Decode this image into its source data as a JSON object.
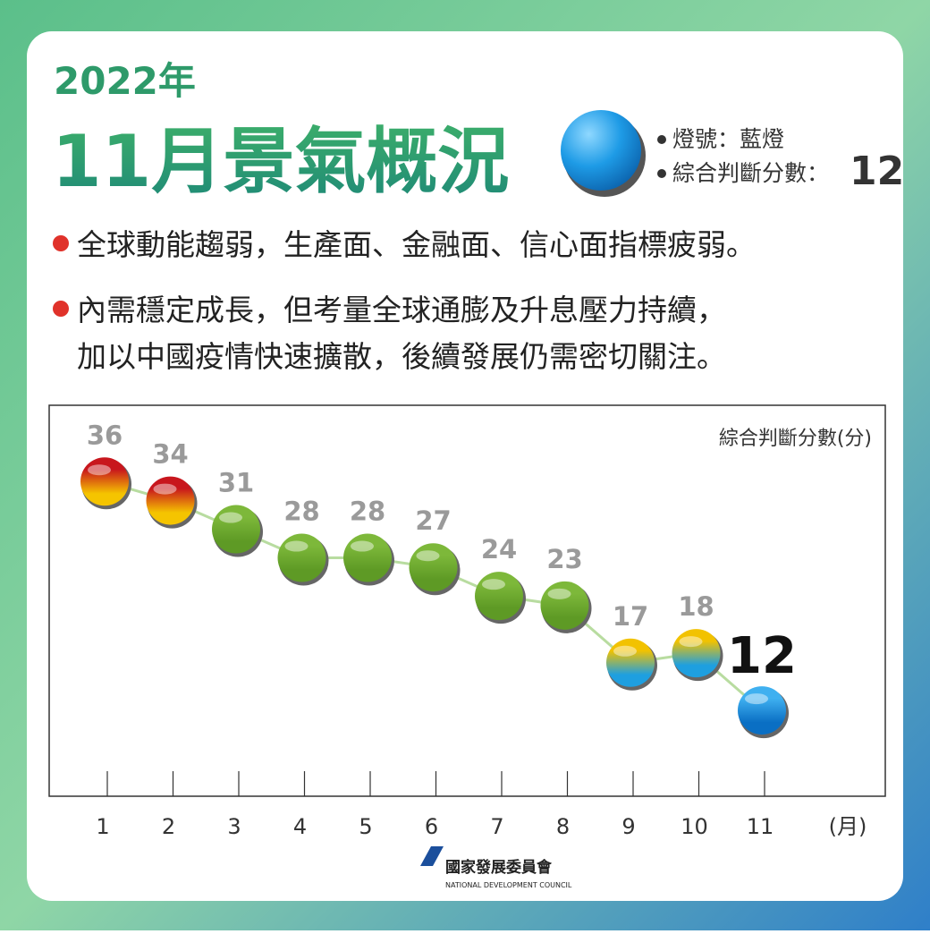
{
  "header": {
    "year": "2022年",
    "title": "11月景氣概況",
    "light": "燈號：藍燈",
    "score_label": "綜合判斷分數：",
    "score": 12
  },
  "bullets": [
    [
      "全球動能趨弱，生產面、金融面、信心面指標疲弱。"
    ],
    [
      "內需穩定成長，但考量全球通膨及升息壓力持續，",
      "加以中國疫情快速擴散，後續發展仍需密切關注。"
    ]
  ],
  "logo": {
    "name": "國家發展委員會",
    "english": "NATIONAL DEVELOPMENT COUNCIL"
  },
  "chart_data": {
    "type": "line",
    "y_label": "綜合判斷分數(分)",
    "x_label": "(月)",
    "categories": [
      "1",
      "2",
      "3",
      "4",
      "5",
      "6",
      "7",
      "8",
      "9",
      "10",
      "11"
    ],
    "values": [
      36,
      34,
      31,
      28,
      28,
      27,
      24,
      23,
      17,
      18,
      12
    ],
    "colors": [
      [
        "#c8161d",
        "#f5c400"
      ],
      [
        "#c8161d",
        "#f5c400"
      ],
      [
        "#7db83a",
        "#5e9a25"
      ],
      [
        "#7db83a",
        "#5e9a25"
      ],
      [
        "#7db83a",
        "#5e9a25"
      ],
      [
        "#7db83a",
        "#5e9a25"
      ],
      [
        "#7db83a",
        "#5e9a25"
      ],
      [
        "#7db83a",
        "#5e9a25"
      ],
      [
        "#f2c200",
        "#1e9fe0"
      ],
      [
        "#f2c200",
        "#1e9fe0"
      ],
      [
        "#3fb0f0",
        "#0a6fc4"
      ]
    ],
    "ylim": [
      3,
      44
    ]
  }
}
